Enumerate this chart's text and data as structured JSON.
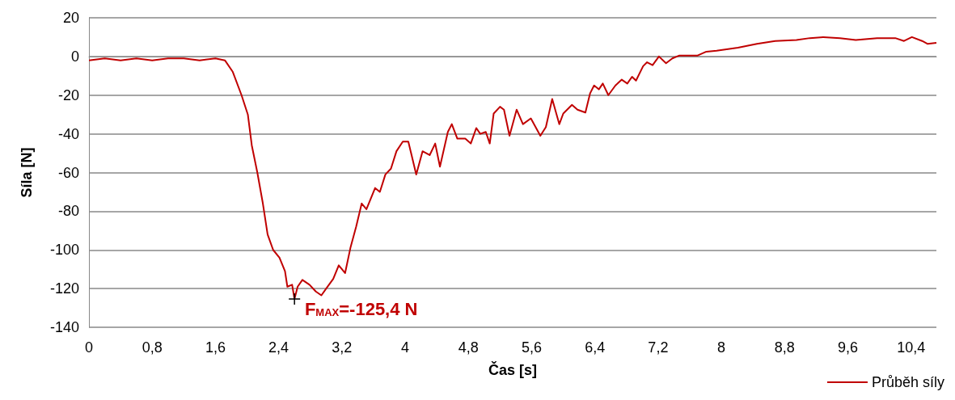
{
  "chart_data": {
    "type": "line",
    "xlabel": "Čas [s]",
    "ylabel": "Síla [N]",
    "x": [
      0,
      0.2,
      0.4,
      0.6,
      0.8,
      1.0,
      1.2,
      1.4,
      1.6,
      1.72,
      1.82,
      1.93,
      2.01,
      2.06,
      2.13,
      2.2,
      2.26,
      2.33,
      2.41,
      2.48,
      2.51,
      2.57,
      2.6,
      2.64,
      2.7,
      2.79,
      2.87,
      2.94,
      3.01,
      3.09,
      3.16,
      3.24,
      3.31,
      3.38,
      3.45,
      3.51,
      3.62,
      3.68,
      3.75,
      3.82,
      3.89,
      3.97,
      4.04,
      4.14,
      4.22,
      4.31,
      4.38,
      4.44,
      4.54,
      4.59,
      4.66,
      4.76,
      4.83,
      4.9,
      4.95,
      5.02,
      5.07,
      5.12,
      5.2,
      5.25,
      5.32,
      5.41,
      5.49,
      5.59,
      5.71,
      5.78,
      5.86,
      5.95,
      6.0,
      6.11,
      6.18,
      6.28,
      6.34,
      6.39,
      6.45,
      6.5,
      6.57,
      6.66,
      6.74,
      6.81,
      6.87,
      6.92,
      7.01,
      7.06,
      7.13,
      7.21,
      7.3,
      7.38,
      7.47,
      7.57,
      7.7,
      7.81,
      7.94,
      8.21,
      8.45,
      8.68,
      8.95,
      9.12,
      9.29,
      9.5,
      9.7,
      9.97,
      10.2,
      10.31,
      10.41,
      10.54,
      10.61,
      10.72
    ],
    "series": [
      {
        "name": "Průběh síly",
        "color": "#c00000",
        "values": [
          -2,
          -1,
          -2,
          -1,
          -2,
          -1,
          -1,
          -2,
          -1,
          -2,
          -8,
          -20,
          -30,
          -46,
          -60,
          -76,
          -92,
          -100,
          -104,
          -111,
          -119,
          -118,
          -125.4,
          -119,
          -115.5,
          -118,
          -121.5,
          -123.5,
          -119.5,
          -115,
          -108,
          -112,
          -98.5,
          -88,
          -76,
          -79,
          -68,
          -70,
          -61,
          -58,
          -49,
          -44,
          -44,
          -61,
          -49,
          -51,
          -45,
          -57,
          -39,
          -35,
          -42.5,
          -42.5,
          -45,
          -37,
          -40,
          -39,
          -45,
          -29.5,
          -26,
          -27.5,
          -41,
          -27.5,
          -35,
          -32,
          -41,
          -36.5,
          -22,
          -35,
          -29.5,
          -25,
          -27.5,
          -29,
          -19,
          -15,
          -17,
          -14,
          -20,
          -15,
          -12,
          -14,
          -10.5,
          -12.5,
          -5,
          -3,
          -4.5,
          0,
          -3.5,
          -1,
          0.5,
          0.5,
          0.5,
          2.5,
          3,
          4.5,
          6.5,
          8,
          8.5,
          9.5,
          10,
          9.5,
          8.5,
          9.5,
          9.5,
          8,
          10,
          8,
          6.5,
          7
        ]
      }
    ],
    "xlim": [
      0,
      10.72
    ],
    "xticks": [
      0,
      {
        "value": 0.8,
        "label": "0,8"
      },
      {
        "value": 1.6,
        "label": "1,6"
      },
      {
        "value": 2.4,
        "label": "2,4"
      },
      {
        "value": 3.2,
        "label": "3,2"
      },
      4,
      {
        "value": 4.8,
        "label": "4,8"
      },
      {
        "value": 5.6,
        "label": "5,6"
      },
      {
        "value": 6.4,
        "label": "6,4"
      },
      {
        "value": 7.2,
        "label": "7,2"
      },
      8,
      {
        "value": 8.8,
        "label": "8,8"
      },
      {
        "value": 9.6,
        "label": "9,6"
      },
      {
        "value": 10.4,
        "label": "10,4"
      }
    ],
    "ylim": [
      -140,
      20
    ],
    "yticks": [
      -140,
      -120,
      -100,
      -80,
      -60,
      -40,
      -20,
      0,
      20
    ],
    "grid": "y",
    "legend": "bottom right",
    "marker": "none",
    "line_style": "solid",
    "annotations": [
      {
        "text": "F$_{MAX}$=-125,4 N",
        "x": 2.6,
        "y": -125.4
      }
    ]
  }
}
